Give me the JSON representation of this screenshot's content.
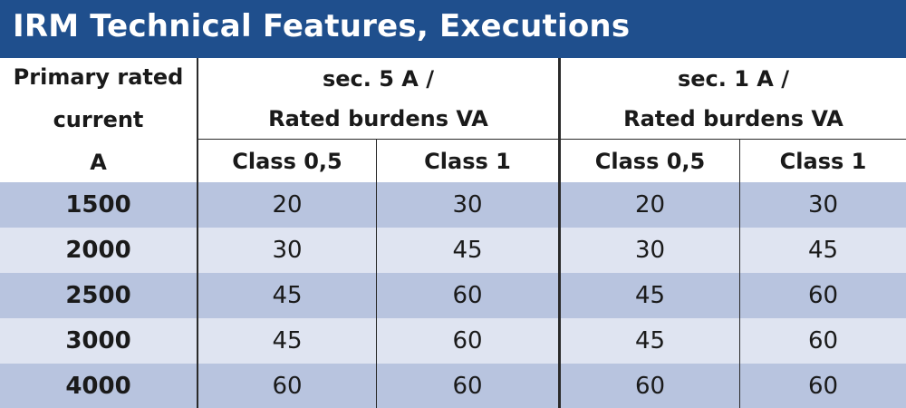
{
  "title": "IRM Technical Features, Executions",
  "header": {
    "primary_lines": [
      "Primary rated",
      "current",
      "A"
    ],
    "group_5a_lines": [
      "sec. 5 A /",
      "Rated burdens VA"
    ],
    "group_1a_lines": [
      "sec. 1 A /",
      "Rated burdens VA"
    ],
    "sub_columns": [
      "Class 0,5",
      "Class 1",
      "Class 0,5",
      "Class 1"
    ]
  },
  "rows": [
    {
      "current": "1500",
      "values": [
        "20",
        "30",
        "20",
        "30"
      ]
    },
    {
      "current": "2000",
      "values": [
        "30",
        "45",
        "30",
        "45"
      ]
    },
    {
      "current": "2500",
      "values": [
        "45",
        "60",
        "45",
        "60"
      ]
    },
    {
      "current": "3000",
      "values": [
        "45",
        "60",
        "45",
        "60"
      ]
    },
    {
      "current": "4000",
      "values": [
        "60",
        "60",
        "60",
        "60"
      ]
    }
  ],
  "colors": {
    "title_bar": "#1f4f8d",
    "row_band_dark": "#b8c4df",
    "row_band_light": "#dfe4f1"
  }
}
